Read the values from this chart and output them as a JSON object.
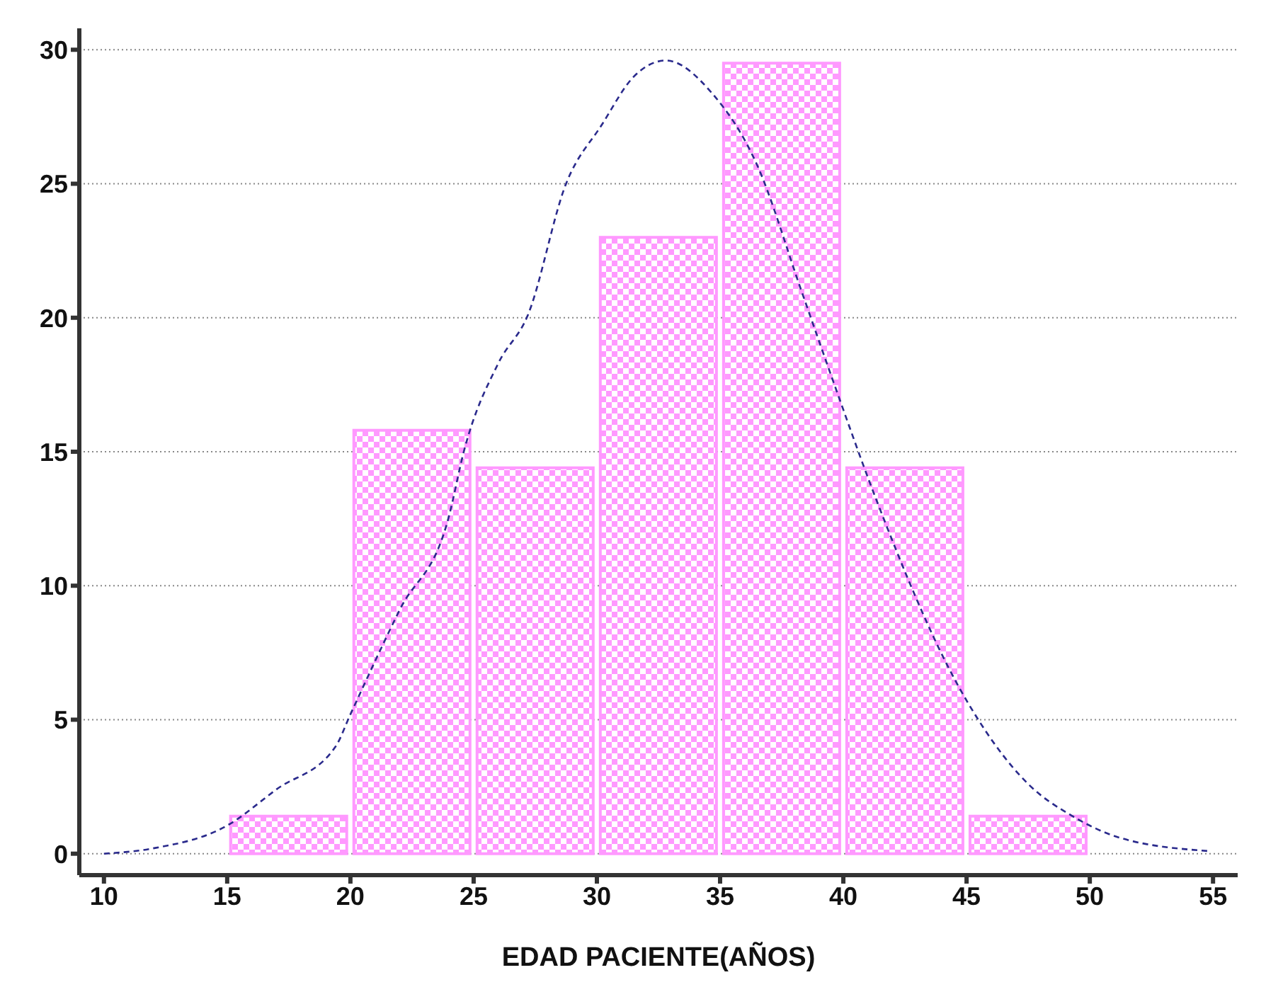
{
  "chart_data": {
    "type": "histogram",
    "xlabel": "EDAD PACIENTE(AÑOS)",
    "bins": [
      15,
      20,
      25,
      30,
      35,
      40,
      45,
      50
    ],
    "values": [
      1.4,
      15.8,
      14.4,
      23.0,
      29.5,
      14.4,
      1.4
    ],
    "color": "#ff99ff",
    "series": [
      {
        "type": "line",
        "color": "#2a2a8c",
        "x": [
          10,
          12,
          15,
          17,
          19.4,
          20,
          22,
          24,
          24.6,
          26,
          27.2,
          28.75,
          30.2,
          31.5,
          32.8,
          34.65,
          36.5,
          38.3,
          39.6,
          41.3,
          44.7,
          47.5,
          49.3,
          51.2,
          54.8
        ],
        "values": [
          0,
          0.2,
          1.05,
          2.4,
          4.0,
          5.2,
          9.1,
          12.6,
          15.0,
          18.3,
          20.1,
          25.0,
          27.2,
          29.0,
          29.6,
          28.4,
          25.7,
          21.0,
          17.6,
          13.3,
          6.2,
          2.6,
          1.4,
          0.6,
          0.1
        ]
      }
    ],
    "xlim": [
      9,
      56
    ],
    "xticks": [
      10,
      15,
      20,
      25,
      30,
      35,
      40,
      45,
      50,
      55
    ],
    "ylim": [
      -0.8,
      30.8
    ],
    "yticks": [
      0,
      5,
      10,
      15,
      20,
      25,
      30
    ],
    "grid": "y",
    "line_style": "dashed",
    "marker": "none"
  }
}
